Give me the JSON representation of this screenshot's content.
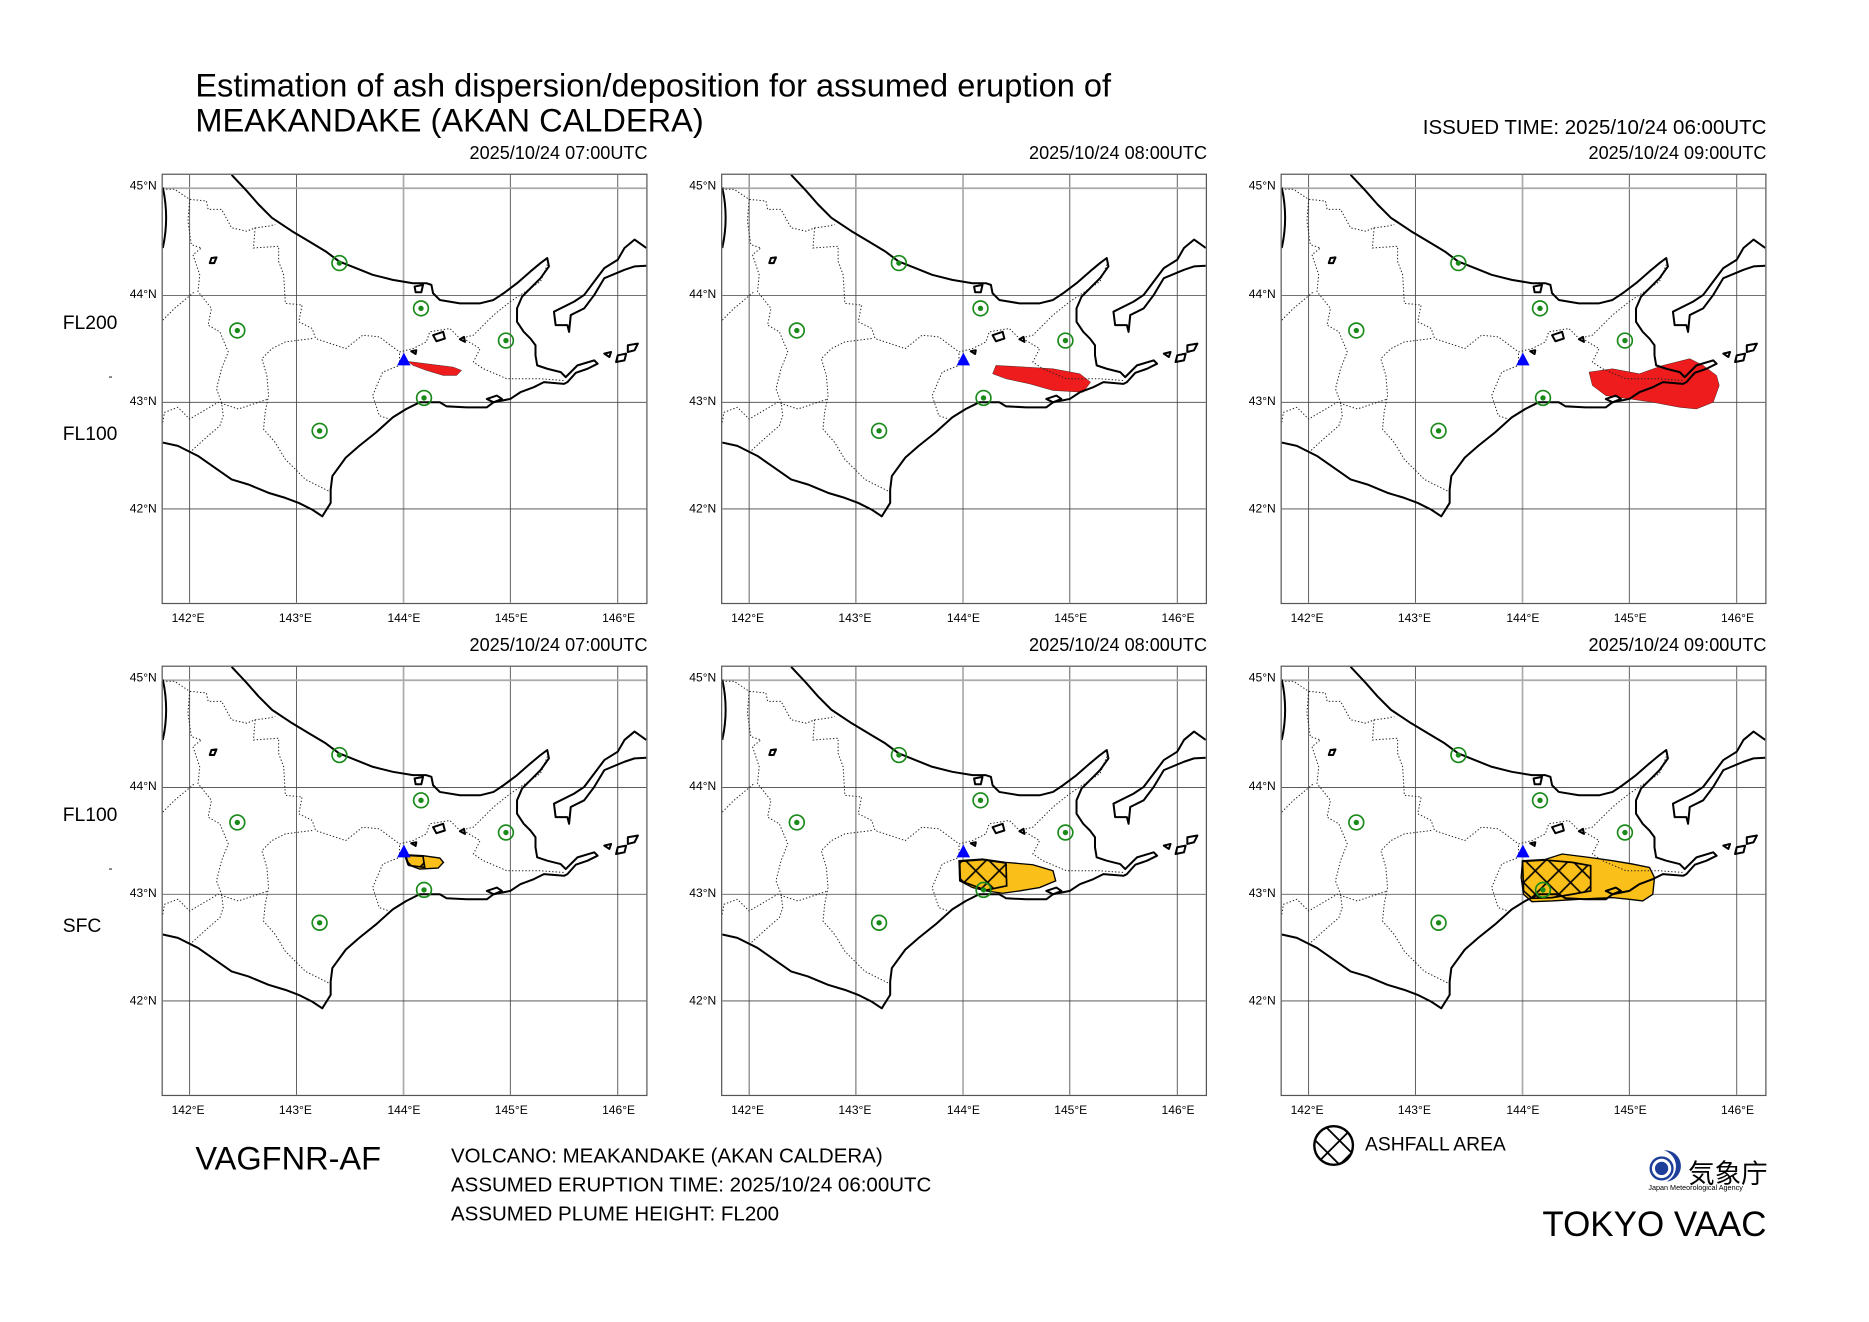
{
  "header": {
    "title_line1": "Estimation of ash dispersion/deposition for assumed eruption of",
    "title_line2": "MEAKANDAKE (AKAN CALDERA)",
    "issued_time": "ISSUED TIME: 2025/10/24 06:00UTC"
  },
  "rows": [
    {
      "levels": [
        "FL200",
        "-",
        "FL100"
      ],
      "type": "ash cloud",
      "color": "#ee1c1c"
    },
    {
      "levels": [
        "FL100",
        "-",
        "SFC"
      ],
      "type": "ash cloud + ashfall",
      "color": "#fbbf1a"
    }
  ],
  "panels": [
    {
      "row": 0,
      "time": "2025/10/24 07:00UTC"
    },
    {
      "row": 0,
      "time": "2025/10/24 08:00UTC"
    },
    {
      "row": 0,
      "time": "2025/10/24 09:00UTC"
    },
    {
      "row": 1,
      "time": "2025/10/24 07:00UTC",
      "ashfall": true
    },
    {
      "row": 1,
      "time": "2025/10/24 08:00UTC",
      "ashfall": true
    },
    {
      "row": 1,
      "time": "2025/10/24 09:00UTC",
      "ashfall": true
    }
  ],
  "axes": {
    "lat_labels": [
      "45°N",
      "44°N",
      "43°N",
      "42°N"
    ],
    "lon_labels": [
      "142°E",
      "143°E",
      "144°E",
      "145°E",
      "146°E"
    ]
  },
  "colors": {
    "volcano": "#0000ff",
    "station": "#1a8a1a",
    "coast": "#000000"
  },
  "footer": {
    "product_code": "VAGFNR-AF",
    "volcano": "VOLCANO: MEAKANDAKE (AKAN CALDERA)",
    "eruption_time": "ASSUMED ERUPTION TIME: 2025/10/24 06:00UTC",
    "plume_height": "ASSUMED PLUME HEIGHT: FL200",
    "legend_label": "ASHFALL AREA",
    "agency_jp": "気象庁",
    "agency_en": "Japan Meteorological Agency",
    "vaac": "TOKYO VAAC"
  }
}
